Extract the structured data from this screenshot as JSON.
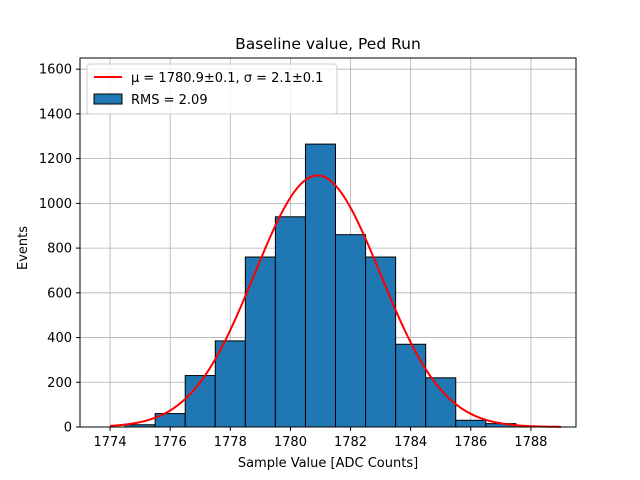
{
  "chart_data": {
    "type": "bar",
    "title": "Baseline value, Ped Run",
    "xlabel": "Sample Value [ADC Counts]",
    "ylabel": "Events",
    "xlim": [
      1773,
      1789.5
    ],
    "ylim": [
      0,
      1650
    ],
    "xticks": [
      1774,
      1776,
      1778,
      1780,
      1782,
      1784,
      1786,
      1788
    ],
    "yticks": [
      0,
      200,
      400,
      600,
      800,
      1000,
      1200,
      1400,
      1600
    ],
    "grid": true,
    "legend_position": "top-left",
    "bar_color": "#1f77b4",
    "fit_color": "#ff0000",
    "bins": [
      {
        "left": 1774.5,
        "right": 1775.5,
        "count": 10
      },
      {
        "left": 1775.5,
        "right": 1776.5,
        "count": 60
      },
      {
        "left": 1776.5,
        "right": 1777.5,
        "count": 230
      },
      {
        "left": 1777.5,
        "right": 1778.5,
        "count": 385
      },
      {
        "left": 1778.5,
        "right": 1779.5,
        "count": 760
      },
      {
        "left": 1779.5,
        "right": 1780.5,
        "count": 940
      },
      {
        "left": 1780.5,
        "right": 1781.5,
        "count": 1265
      },
      {
        "left": 1781.5,
        "right": 1782.5,
        "count": 860
      },
      {
        "left": 1782.5,
        "right": 1783.5,
        "count": 760
      },
      {
        "left": 1783.5,
        "right": 1784.5,
        "count": 370
      },
      {
        "left": 1784.5,
        "right": 1785.5,
        "count": 220
      },
      {
        "left": 1785.5,
        "right": 1786.5,
        "count": 30
      },
      {
        "left": 1786.5,
        "right": 1787.5,
        "count": 15
      }
    ],
    "fit": {
      "function": "gaussian",
      "mu": 1780.9,
      "sigma": 2.1,
      "amplitude": 1125,
      "x_range": [
        1774,
        1789
      ]
    },
    "legend": [
      {
        "kind": "line",
        "label": "μ = 1780.9±0.1, σ = 2.1±0.1"
      },
      {
        "kind": "patch",
        "label": "RMS = 2.09"
      }
    ]
  }
}
